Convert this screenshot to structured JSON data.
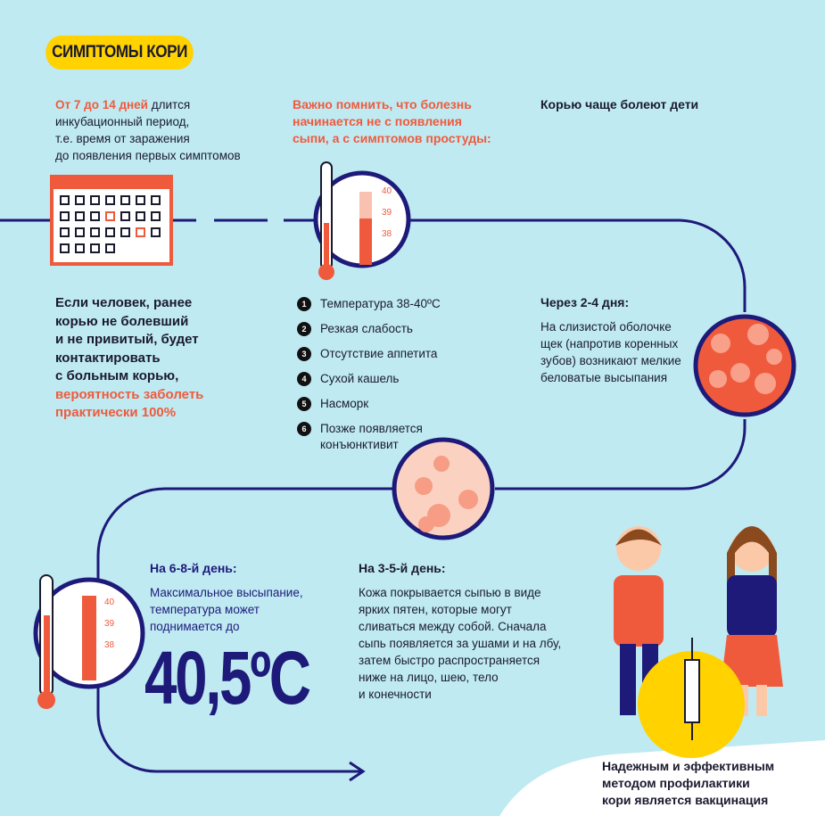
{
  "title": "СИМПТОМЫ КОРИ",
  "incubation": {
    "highlight": "От 7 до 14 дней",
    "rest1": " длится",
    "lines": [
      "инкубационный период,",
      "т.е. время от заражения",
      "до появления первых симптомов"
    ]
  },
  "remember": [
    "Важно помнить, что болезнь",
    "начинается не с появления",
    "сыпи, а с симптомов простуды:"
  ],
  "children": "Корью чаще болеют дети",
  "contact": {
    "lines": [
      "Если человек, ранее",
      "корью не болевший",
      "и не привитый, будет",
      "контактировать",
      "с больным корью,"
    ],
    "red": [
      "вероятность заболеть",
      "практически 100%"
    ]
  },
  "symptoms": [
    {
      "n": "1",
      "text": "Температура 38-40ºС"
    },
    {
      "n": "2",
      "text": "Резкая слабость"
    },
    {
      "n": "3",
      "text": "Отсутствие аппетита"
    },
    {
      "n": "4",
      "text": "Сухой кашель"
    },
    {
      "n": "5",
      "text": "Насморк"
    },
    {
      "n": "6",
      "text": "Позже появляется конъюнктивит"
    }
  ],
  "day24": {
    "head": "Через 2-4 дня:",
    "lines": [
      "На слизистой оболочке",
      "щек (напротив коренных",
      "зубов) возникают мелкие",
      "беловатые высыпания"
    ]
  },
  "day68": {
    "head": "На 6-8-й день:",
    "lines": [
      "Максимальное высыпание,",
      "температура может",
      "поднимается до"
    ],
    "temp": "40,5ºC"
  },
  "day35": {
    "head": "На 3-5-й день:",
    "lines": [
      "Кожа покрывается сыпью в виде",
      "ярких пятен, которые могут",
      "сливаться между собой. Сначала",
      "сыпь появляется за ушами и на лбу,",
      "затем быстро распространяется",
      "ниже на лицо, шею, тело",
      "и конечности"
    ]
  },
  "thermo_labels": [
    "40",
    "39",
    "38"
  ],
  "vaccine": [
    "Надежным и эффективным",
    "методом профилактики",
    "кори является вакцинация"
  ],
  "colors": {
    "bg": "#bfeaf2",
    "navy": "#1d1a7a",
    "red": "#f05a3c",
    "yellow": "#ffd200"
  }
}
